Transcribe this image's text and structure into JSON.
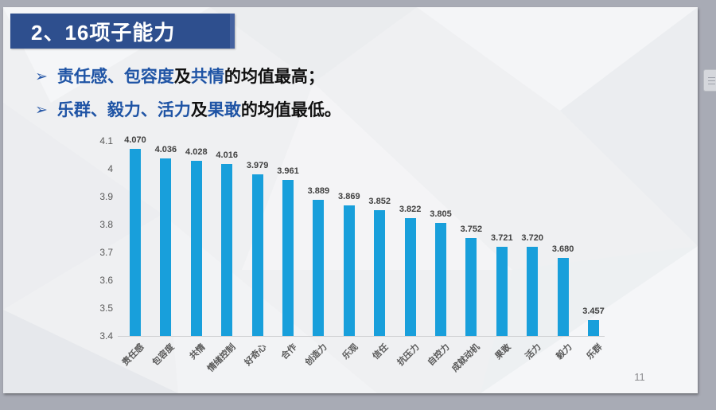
{
  "window": {
    "page_number": "11"
  },
  "title": {
    "text": "2、16项子能力"
  },
  "bullets": [
    {
      "marker": "➢",
      "segments": [
        {
          "text": "责任感、包容度",
          "color": "blue"
        },
        {
          "text": "及",
          "color": "black"
        },
        {
          "text": "共情",
          "color": "blue"
        },
        {
          "text": "的均值最高；",
          "color": "black"
        }
      ]
    },
    {
      "marker": "➢",
      "segments": [
        {
          "text": "乐群、毅力、活力",
          "color": "blue"
        },
        {
          "text": "及",
          "color": "black"
        },
        {
          "text": "果敢",
          "color": "blue"
        },
        {
          "text": "的均值最低。",
          "color": "black"
        }
      ]
    }
  ],
  "chart_data": {
    "type": "bar",
    "title": "",
    "xlabel": "",
    "ylabel": "",
    "categories": [
      "责任感",
      "包容度",
      "共情",
      "情绪控制",
      "好奇心",
      "合作",
      "创造力",
      "乐观",
      "信任",
      "抗压力",
      "自控力",
      "成就动机",
      "果敢",
      "活力",
      "毅力",
      "乐群"
    ],
    "values": [
      4.07,
      4.036,
      4.028,
      4.016,
      3.979,
      3.961,
      3.889,
      3.869,
      3.852,
      3.822,
      3.805,
      3.752,
      3.721,
      3.72,
      3.68,
      3.457
    ],
    "value_labels": [
      "4.070",
      "4.036",
      "4.028",
      "4.016",
      "3.979",
      "3.961",
      "3.889",
      "3.869",
      "3.852",
      "3.822",
      "3.805",
      "3.752",
      "3.721",
      "3.720",
      "3.680",
      "3.457"
    ],
    "y_ticks": [
      "4.1",
      "4",
      "3.9",
      "3.8",
      "3.7",
      "3.6",
      "3.5",
      "3.4"
    ],
    "ylim": [
      3.4,
      4.1
    ],
    "grid": false,
    "legend": false,
    "bar_color": "#189fdb"
  },
  "colors": {
    "title_bg": "#2e4f8e",
    "accent_blue_text": "#1f54a5",
    "chrome_gray": "#a8abb5",
    "bar_blue": "#189fdb"
  }
}
